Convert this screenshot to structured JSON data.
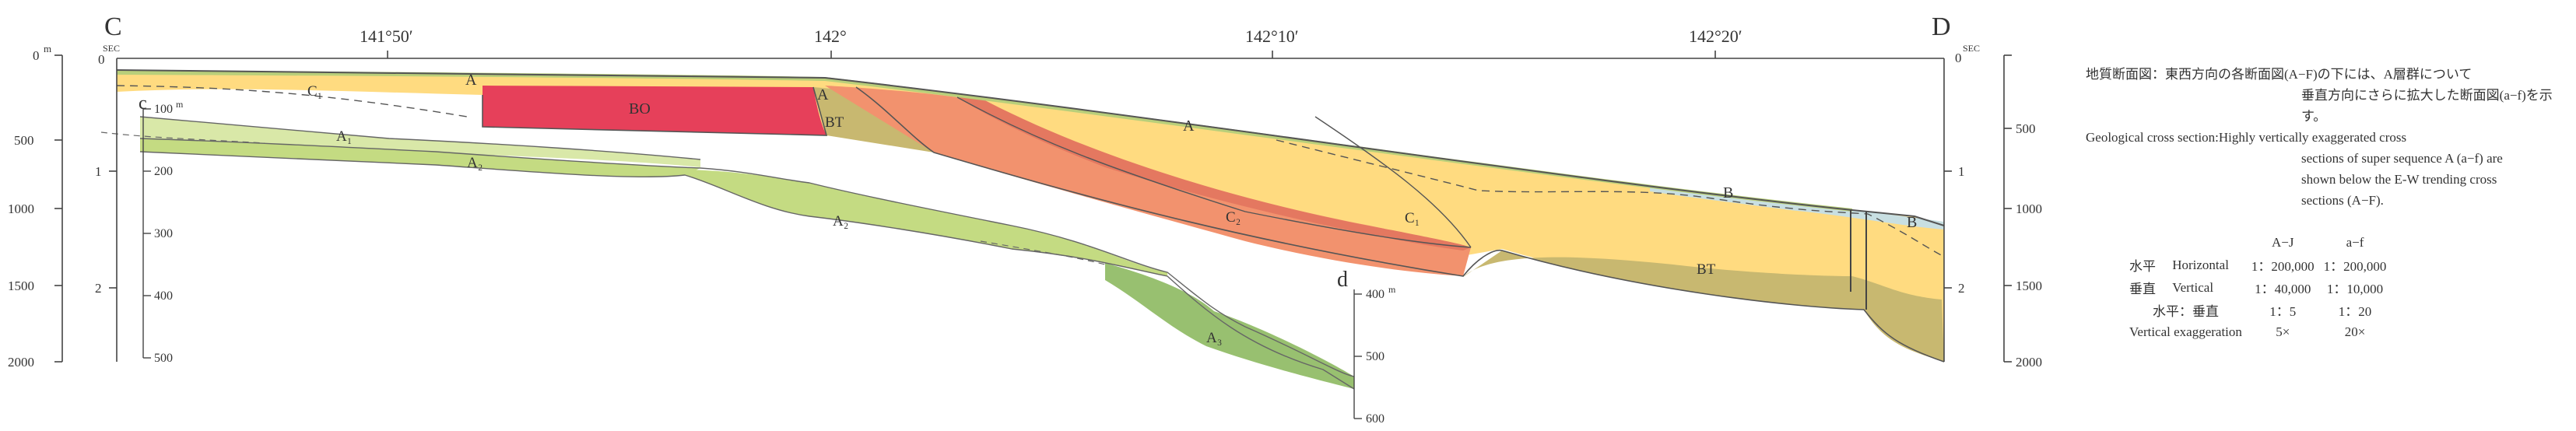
{
  "profile": {
    "start_label": "C",
    "end_label": "D",
    "sub_left_label": "c",
    "sub_right_label": "d",
    "longitudes": [
      "141°50′",
      "142°",
      "142°10′",
      "142°20′"
    ]
  },
  "axes": {
    "left_depth_m": [
      "0",
      "500",
      "1000",
      "1500",
      "2000"
    ],
    "left_depth_unit": "m",
    "twt_ticks": [
      "0",
      "1",
      "2"
    ],
    "twt_unit": "SEC",
    "sub_left_ticks": [
      "100",
      "200",
      "300",
      "400",
      "500"
    ],
    "sub_left_unit": "m",
    "sub_right_ticks": [
      "400",
      "500",
      "600"
    ],
    "sub_right_unit": "m",
    "right_depth_m": [
      "500",
      "1000",
      "1500",
      "2000"
    ]
  },
  "units": {
    "bo": "BO",
    "bt_left": "BT",
    "bt_right": "BT",
    "c1_left": "C₁",
    "c1_right": "C₁",
    "c2": "C₂",
    "a_top1": "A",
    "a_top2": "A",
    "a_top3": "A",
    "b_mid": "B",
    "b_right": "B",
    "a1": "A₁",
    "a2_top": "A₂",
    "a2_mid": "A₂",
    "a3": "A₃"
  },
  "legend": {
    "jp_title": "地質断面図：東西方向の各断面図(A−F)の下には、A層群について",
    "jp_line2": "垂直方向にさらに拡大した断面図(a−f)を示す。",
    "en_title": "Geological cross section:Highly vertically exaggerated cross",
    "en_line2": "sections of super sequence A (a−f) are",
    "en_line3": "shown below the E-W trending cross",
    "en_line4": "sections (A−F)."
  },
  "scale": {
    "col1": "A−J",
    "col2": "a−f",
    "rows": [
      {
        "jp": "水平",
        "en": "Horizontal",
        "v1": "1：200,000",
        "v2": "1：200,000"
      },
      {
        "jp": "垂直",
        "en": "Vertical",
        "v1": "1：40,000",
        "v2": "1：10,000"
      },
      {
        "label": "水平：垂直",
        "v1": "1：5",
        "v2": "1：20"
      },
      {
        "label": "Vertical exaggeration",
        "v1": "5×",
        "v2": "20×"
      }
    ]
  },
  "colors": {
    "a_unit": "#ffdb80",
    "bo": "#e6405a",
    "c2": "#f2926e",
    "bt": "#c8b870",
    "b_unit": "#c8dfe2",
    "a_seq_light": "#d9e8a8",
    "a2_green": "#c4db82",
    "a3_green": "#98c070",
    "top_green": "#b9cf7a"
  }
}
